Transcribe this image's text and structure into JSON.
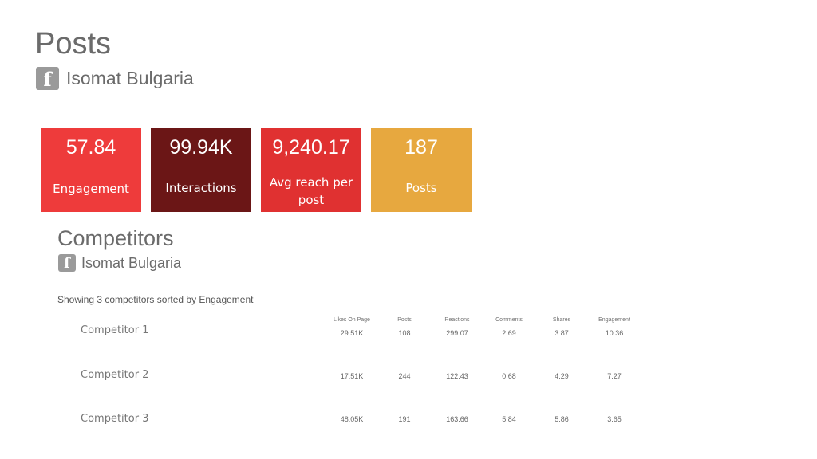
{
  "header": {
    "title": "Posts",
    "account_icon": "facebook-icon",
    "account_name": "Isomat Bulgaria"
  },
  "kpis": [
    {
      "value": "57.84",
      "label": "Engagement",
      "color": "#ee3b3b"
    },
    {
      "value": "99.94K",
      "label": "Interactions",
      "color": "#6b1616"
    },
    {
      "value": "9,240.17",
      "label": "Avg reach per post",
      "color": "#e03131"
    },
    {
      "value": "187",
      "label": "Posts",
      "color": "#e7a83f"
    }
  ],
  "competitors": {
    "title": "Competitors",
    "account_icon": "facebook-icon",
    "account_name": "Isomat Bulgaria",
    "summary": "Showing 3 competitors sorted by Engagement",
    "columns": [
      "Likes On Page",
      "Posts",
      "Reactions",
      "Comments",
      "Shares",
      "Engagement"
    ],
    "rows": [
      {
        "name": "Competitor 1",
        "values": [
          "29.51K",
          "108",
          "299.07",
          "2.69",
          "3.87",
          "10.36"
        ]
      },
      {
        "name": "Competitor 2",
        "values": [
          "17.51K",
          "244",
          "122.43",
          "0.68",
          "4.29",
          "7.27"
        ]
      },
      {
        "name": "Competitor 3",
        "values": [
          "48.05K",
          "191",
          "163.66",
          "5.84",
          "5.86",
          "3.65"
        ]
      }
    ]
  }
}
